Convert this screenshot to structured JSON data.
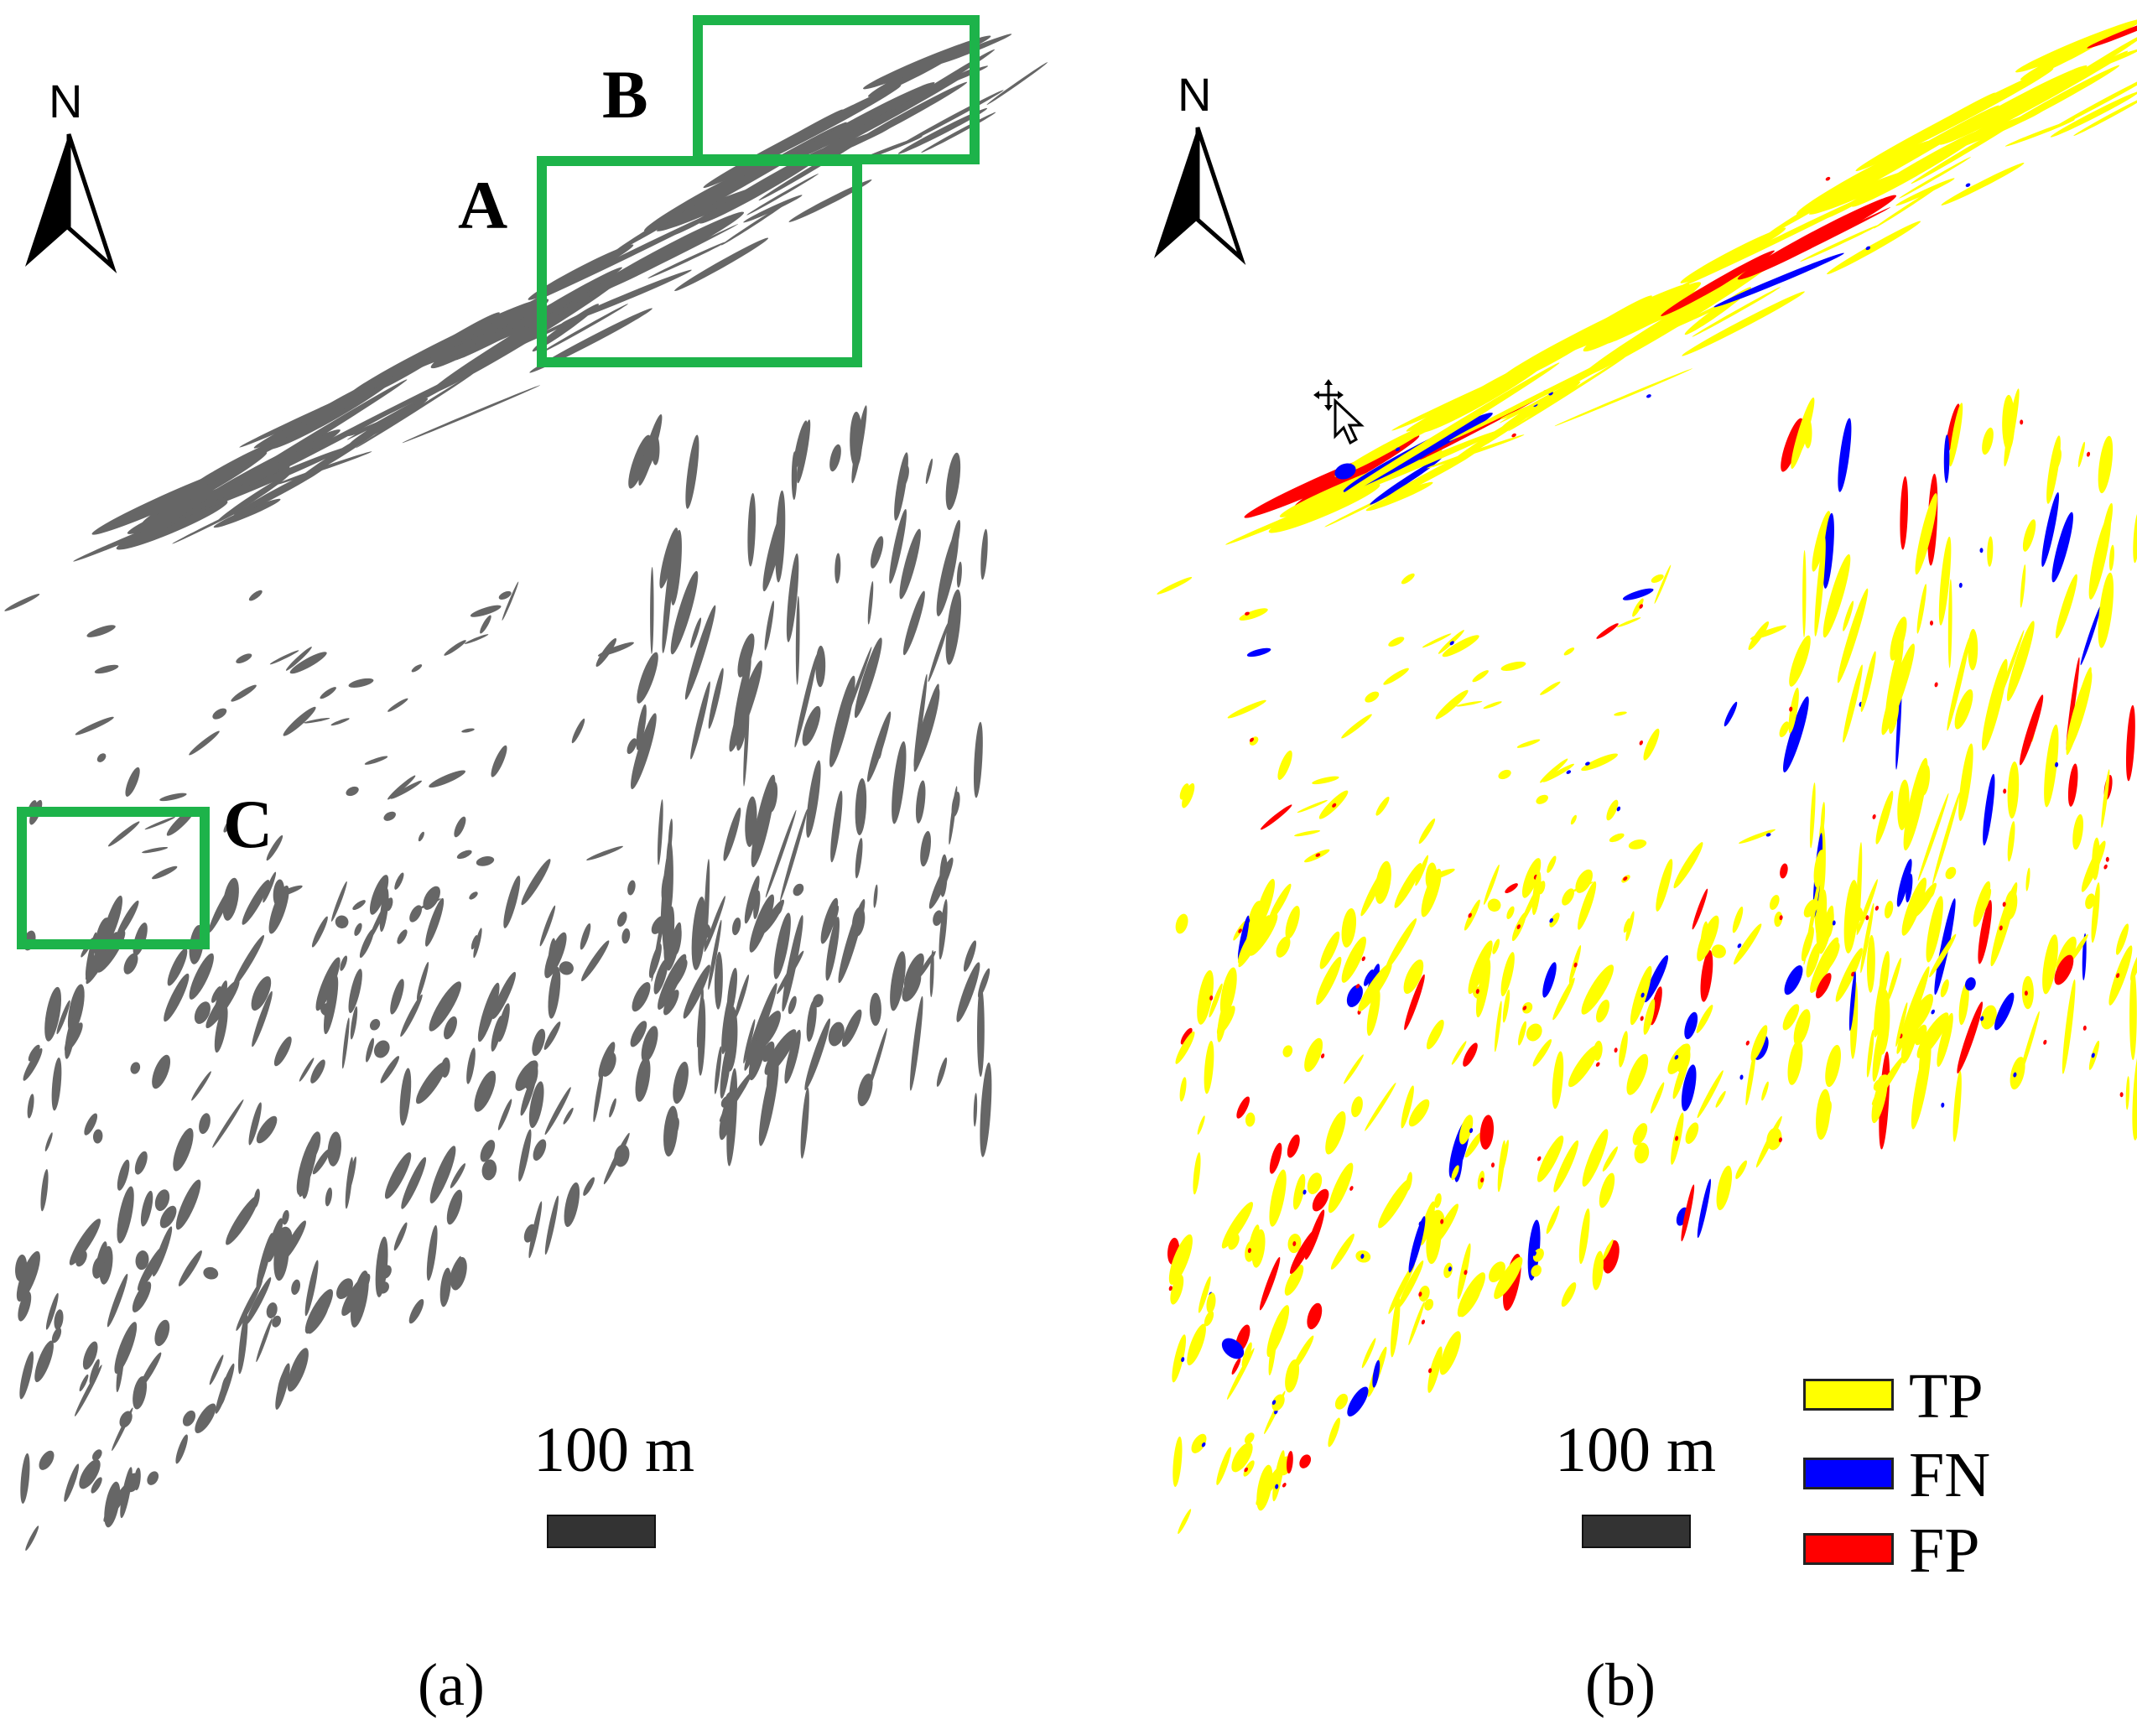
{
  "panels": [
    {
      "id": "a",
      "caption": "(a)",
      "north_label": "N",
      "scale_label": "100 m",
      "regions": [
        {
          "label": "A"
        },
        {
          "label": "B"
        },
        {
          "label": "C"
        }
      ],
      "colors": {
        "features": "#666666",
        "roi_box": "#1db34a"
      }
    },
    {
      "id": "b",
      "caption": "(b)",
      "north_label": "N",
      "scale_label": "100 m",
      "legend": [
        {
          "label": "TP",
          "color": "#ffff00"
        },
        {
          "label": "FN",
          "color": "#0000ff"
        },
        {
          "label": "FP",
          "color": "#ff0000"
        }
      ]
    }
  ]
}
